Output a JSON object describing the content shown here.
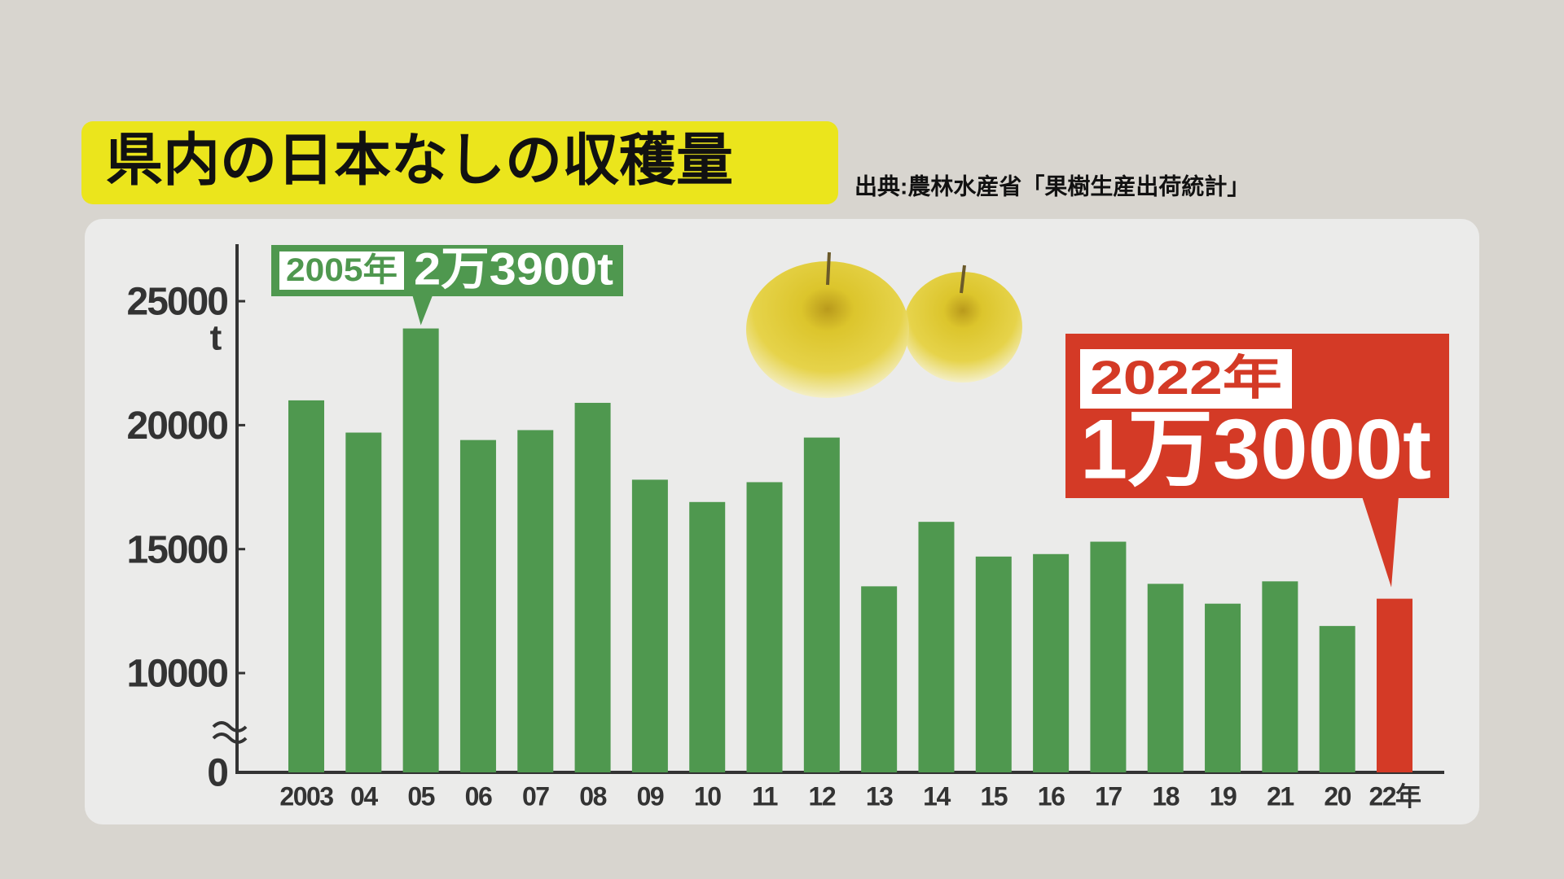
{
  "title": "県内の日本なしの収穫量",
  "source": "出典:農林水産省「果樹生産出荷統計」",
  "chart_data": {
    "type": "bar",
    "categories": [
      "2003",
      "04",
      "05",
      "06",
      "07",
      "08",
      "09",
      "10",
      "11",
      "12",
      "13",
      "14",
      "15",
      "16",
      "17",
      "18",
      "19",
      "21",
      "20",
      "22年"
    ],
    "values": [
      21000,
      19700,
      23900,
      19400,
      19800,
      20900,
      17800,
      16900,
      17700,
      19500,
      13500,
      16100,
      14700,
      14800,
      15300,
      13600,
      12800,
      13700,
      11900,
      13000
    ],
    "value_labels": [
      null,
      null,
      "2万3900t",
      null,
      null,
      null,
      null,
      null,
      null,
      null,
      null,
      null,
      null,
      null,
      null,
      null,
      null,
      null,
      null,
      "1万3000t"
    ],
    "callout_titles": [
      null,
      null,
      "2005年",
      null,
      null,
      null,
      null,
      null,
      null,
      null,
      null,
      null,
      null,
      null,
      null,
      null,
      null,
      null,
      null,
      "2022年"
    ],
    "colors": [
      "#4f984f",
      "#4f984f",
      "#4f984f",
      "#4f984f",
      "#4f984f",
      "#4f984f",
      "#4f984f",
      "#4f984f",
      "#4f984f",
      "#4f984f",
      "#4f984f",
      "#4f984f",
      "#4f984f",
      "#4f984f",
      "#4f984f",
      "#4f984f",
      "#4f984f",
      "#4f984f",
      "#4f984f",
      "#d43a26"
    ],
    "y_unit": "t",
    "ylim": [
      0,
      27300
    ],
    "yticks": [
      0,
      10000,
      15000,
      20000,
      25000
    ],
    "axis_break": true
  }
}
